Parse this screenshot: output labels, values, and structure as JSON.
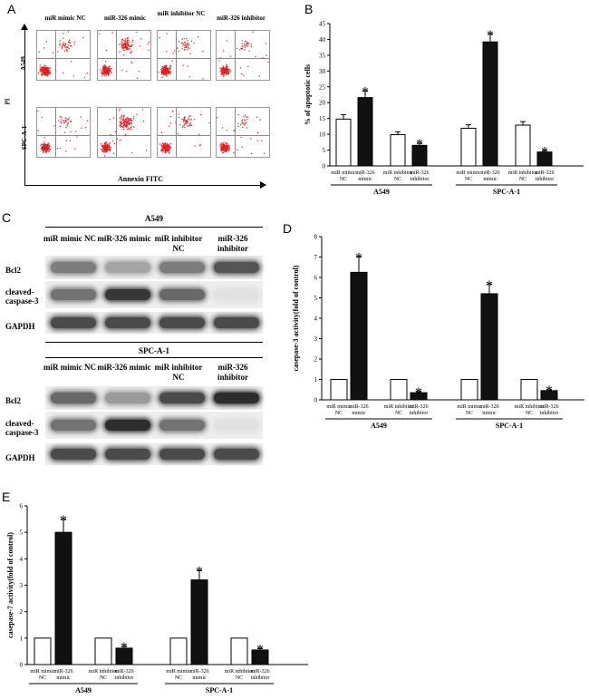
{
  "panels": {
    "a": "A",
    "b": "B",
    "c": "C",
    "d": "D",
    "e": "E"
  },
  "flow": {
    "columns": [
      "miR mimic NC",
      "miR-326 mimic",
      "miR inhibitor NC",
      "miR-326 inhibitor"
    ],
    "rows": [
      "A549",
      "SPC-A-1"
    ],
    "x_axis": "Annexin FITC",
    "y_axis": "PI"
  },
  "blot": {
    "columns": [
      "miR mimic NC",
      "miR-326 mimic",
      "miR inhibitor NC",
      "miR-326 inhibitor"
    ],
    "cell_lines": [
      "A549",
      "SPC-A-1"
    ],
    "proteins": [
      "Bcl2",
      "cleaved-caspase-3",
      "GAPDH"
    ],
    "intensity": {
      "A549": {
        "Bcl2": [
          0.55,
          0.35,
          0.55,
          0.75
        ],
        "cleaved-caspase-3": [
          0.6,
          0.9,
          0.65,
          0.05
        ],
        "GAPDH": [
          0.8,
          0.8,
          0.8,
          0.8
        ]
      },
      "SPC-A-1": {
        "Bcl2": [
          0.65,
          0.4,
          0.8,
          0.95
        ],
        "cleaved-caspase-3": [
          0.6,
          0.95,
          0.6,
          0.05
        ],
        "GAPDH": [
          0.8,
          0.8,
          0.8,
          0.8
        ]
      }
    }
  },
  "chart_data": [
    {
      "id": "B",
      "type": "bar",
      "title": "",
      "ylabel": "% of apoptotic cells",
      "ylim": [
        0,
        45
      ],
      "yticks": [
        0,
        5,
        10,
        15,
        20,
        25,
        30,
        35,
        40,
        45
      ],
      "categories": [
        "miR mimic NC",
        "miR-326 mimic",
        "miR inhibitor NC",
        "miR-326 inhibitor"
      ],
      "groups": [
        {
          "name": "A549",
          "values": [
            14.8,
            21.6,
            9.9,
            6.5
          ],
          "errors": [
            1.4,
            2.0,
            0.9,
            0.6
          ],
          "significant": [
            false,
            true,
            false,
            true
          ]
        },
        {
          "name": "SPC-A-1",
          "values": [
            11.9,
            39.2,
            12.9,
            4.4
          ],
          "errors": [
            1.1,
            2.4,
            1.1,
            0.4
          ],
          "significant": [
            false,
            true,
            false,
            true
          ]
        }
      ]
    },
    {
      "id": "D",
      "type": "bar",
      "title": "",
      "ylabel": "casepase-3 activity(fold of control)",
      "ylim": [
        0,
        8
      ],
      "yticks": [
        0,
        1,
        2,
        3,
        4,
        5,
        6,
        7,
        8
      ],
      "categories": [
        "miR mimic NC",
        "miR-326 mimic",
        "miR inhibitor NC",
        "miR-326 inhibitor"
      ],
      "groups": [
        {
          "name": "A549",
          "values": [
            1.0,
            6.25,
            1.0,
            0.35
          ],
          "errors": [
            0,
            0.75,
            0,
            0.05
          ],
          "significant": [
            false,
            true,
            false,
            true
          ]
        },
        {
          "name": "SPC-A-1",
          "values": [
            1.0,
            5.2,
            1.0,
            0.45
          ],
          "errors": [
            0,
            0.45,
            0,
            0.04
          ],
          "significant": [
            false,
            true,
            false,
            true
          ]
        }
      ]
    },
    {
      "id": "E",
      "type": "bar",
      "title": "",
      "ylabel": "casepase-7 activity(fold of control)",
      "ylim": [
        0,
        6
      ],
      "yticks": [
        0,
        1,
        2,
        3,
        4,
        5,
        6
      ],
      "categories": [
        "miR mimic NC",
        "miR-326 mimic",
        "miR inhibitor NC",
        "miR-326 inhibitor"
      ],
      "groups": [
        {
          "name": "A549",
          "values": [
            1.0,
            5.0,
            1.0,
            0.62
          ],
          "errors": [
            0,
            0.48,
            0,
            0.06
          ],
          "significant": [
            false,
            true,
            false,
            true
          ]
        },
        {
          "name": "SPC-A-1",
          "values": [
            1.0,
            3.2,
            1.0,
            0.55
          ],
          "errors": [
            0,
            0.35,
            0,
            0.05
          ],
          "significant": [
            false,
            true,
            false,
            true
          ]
        }
      ]
    }
  ],
  "colors": {
    "control": "#ffffff",
    "treated": "#111111",
    "flow_dots": "#e02020"
  },
  "sig_marker": "*"
}
